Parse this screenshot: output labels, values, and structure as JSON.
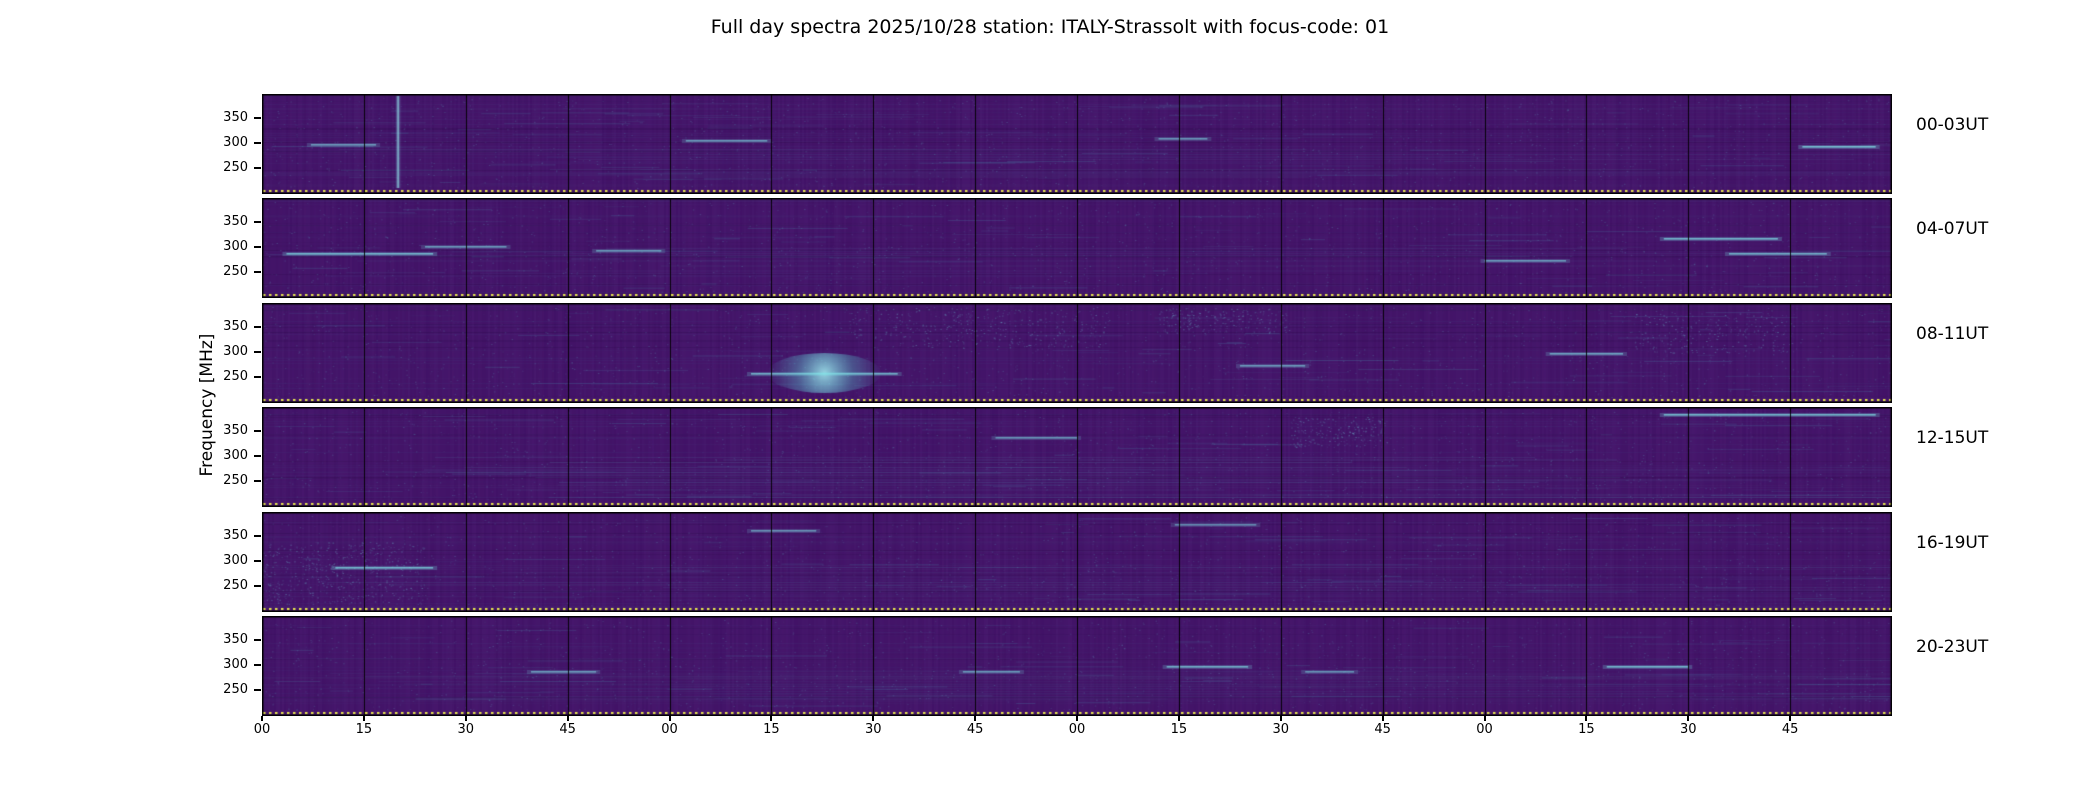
{
  "title": "Full day spectra 2025/10/28 station: ITALY-Strassolt with focus-code: 01",
  "ylabel": "Frequency [MHz]",
  "date": "2025/10/28",
  "station": "ITALY-Strassolt",
  "focus_code": "01",
  "chart_data": {
    "type": "heatmap",
    "subtype": "radio spectrogram daily overview, 6 stacked 4-hour panels",
    "colormap": "viridis-like (dark purple background, cyan activity, yellow dotted baseline)",
    "title": "Full day spectra 2025/10/28 station: ITALY-Strassolt with focus-code: 01",
    "ylabel": "Frequency [MHz]",
    "y_ticks": [
      "350",
      "300",
      "250"
    ],
    "y_unit": "MHz",
    "y_range_estimate": [
      200,
      400
    ],
    "x_ticks": [
      "00",
      "15",
      "30",
      "45",
      "00",
      "15",
      "30",
      "45",
      "00",
      "15",
      "30",
      "45",
      "00",
      "15",
      "30",
      "45"
    ],
    "x_unit": "minutes past hour",
    "segments_per_panel": 16,
    "minutes_per_segment": 15,
    "hours_per_panel": 4,
    "grid": "vertical black segment lines every 15 minutes, black panel borders",
    "legend": "none",
    "colors": {
      "base": "#421367",
      "column_light": "#64378f",
      "activity": "#63cfd8",
      "dotted": "#e9e94f",
      "grid": "#000000",
      "background": "#ffffff"
    },
    "panels": [
      {
        "label": "00-03UT",
        "features": [
          {
            "type": "vline",
            "x": 0.083
          },
          {
            "type": "hstreak",
            "x": 0.945,
            "y": 0.52,
            "len": 0.045,
            "strength": 0.9
          },
          {
            "type": "hstreak",
            "x": 0.03,
            "y": 0.5,
            "len": 0.04,
            "strength": 0.5
          },
          {
            "type": "hstreak",
            "x": 0.26,
            "y": 0.46,
            "len": 0.05,
            "strength": 0.5
          },
          {
            "type": "hstreak",
            "x": 0.55,
            "y": 0.44,
            "len": 0.03,
            "strength": 0.45
          },
          {
            "type": "rows",
            "y0": 0.55,
            "y1": 0.85,
            "strength": 0.4
          }
        ]
      },
      {
        "label": "04-07UT",
        "features": [
          {
            "type": "hstreak",
            "x": 0.015,
            "y": 0.55,
            "len": 0.09,
            "strength": 0.8
          },
          {
            "type": "hstreak",
            "x": 0.1,
            "y": 0.48,
            "len": 0.05,
            "strength": 0.5
          },
          {
            "type": "hstreak",
            "x": 0.205,
            "y": 0.52,
            "len": 0.04,
            "strength": 0.5
          },
          {
            "type": "hstreak",
            "x": 0.86,
            "y": 0.4,
            "len": 0.07,
            "strength": 0.8
          },
          {
            "type": "hstreak",
            "x": 0.9,
            "y": 0.55,
            "len": 0.06,
            "strength": 0.7
          },
          {
            "type": "hstreak",
            "x": 0.75,
            "y": 0.62,
            "len": 0.05,
            "strength": 0.5
          },
          {
            "type": "rows",
            "y0": 0.5,
            "y1": 0.8,
            "strength": 0.35
          }
        ]
      },
      {
        "label": "08-11UT",
        "features": [
          {
            "type": "blob",
            "x": 0.345,
            "y": 0.7,
            "w": 0.035
          },
          {
            "type": "hstreak",
            "x": 0.3,
            "y": 0.7,
            "len": 0.09,
            "strength": 0.7
          },
          {
            "type": "band",
            "x": 0.36,
            "len": 0.16,
            "y0": 0.05,
            "y1": 0.45,
            "strength": 0.6
          },
          {
            "type": "band",
            "x": 0.55,
            "len": 0.08,
            "y0": 0.05,
            "y1": 0.3,
            "strength": 0.4
          },
          {
            "type": "hstreak",
            "x": 0.79,
            "y": 0.5,
            "len": 0.045,
            "strength": 0.6
          },
          {
            "type": "band",
            "x": 0.84,
            "len": 0.1,
            "y0": 0.1,
            "y1": 0.5,
            "strength": 0.4
          },
          {
            "type": "hstreak",
            "x": 0.6,
            "y": 0.62,
            "len": 0.04,
            "strength": 0.5
          }
        ]
      },
      {
        "label": "12-15UT",
        "features": [
          {
            "type": "rows",
            "y0": 0.5,
            "y1": 0.92,
            "strength": 0.8
          },
          {
            "type": "hstreak",
            "x": 0.86,
            "y": 0.07,
            "len": 0.13,
            "strength": 0.8
          },
          {
            "type": "hstreak",
            "x": 0.45,
            "y": 0.3,
            "len": 0.05,
            "strength": 0.4
          },
          {
            "type": "band",
            "x": 0.63,
            "len": 0.06,
            "y0": 0.1,
            "y1": 0.4,
            "strength": 0.35
          }
        ]
      },
      {
        "label": "16-19UT",
        "features": [
          {
            "type": "band",
            "x": 0.0,
            "len": 0.1,
            "y0": 0.3,
            "y1": 0.92,
            "strength": 0.8
          },
          {
            "type": "hstreak",
            "x": 0.045,
            "y": 0.55,
            "len": 0.06,
            "strength": 0.8
          },
          {
            "type": "rows",
            "y0": 0.55,
            "y1": 0.9,
            "strength": 0.5
          },
          {
            "type": "hstreak",
            "x": 0.3,
            "y": 0.18,
            "len": 0.04,
            "strength": 0.4
          },
          {
            "type": "hstreak",
            "x": 0.56,
            "y": 0.12,
            "len": 0.05,
            "strength": 0.35
          }
        ]
      },
      {
        "label": "20-23UT",
        "features": [
          {
            "type": "hstreak",
            "x": 0.555,
            "y": 0.5,
            "len": 0.05,
            "strength": 0.7
          },
          {
            "type": "hstreak",
            "x": 0.825,
            "y": 0.5,
            "len": 0.05,
            "strength": 0.8
          },
          {
            "type": "hstreak",
            "x": 0.165,
            "y": 0.55,
            "len": 0.04,
            "strength": 0.5
          },
          {
            "type": "hstreak",
            "x": 0.43,
            "y": 0.55,
            "len": 0.035,
            "strength": 0.45
          },
          {
            "type": "hstreak",
            "x": 0.64,
            "y": 0.55,
            "len": 0.03,
            "strength": 0.4
          },
          {
            "type": "rows",
            "y0": 0.55,
            "y1": 0.85,
            "strength": 0.35
          }
        ]
      }
    ]
  }
}
